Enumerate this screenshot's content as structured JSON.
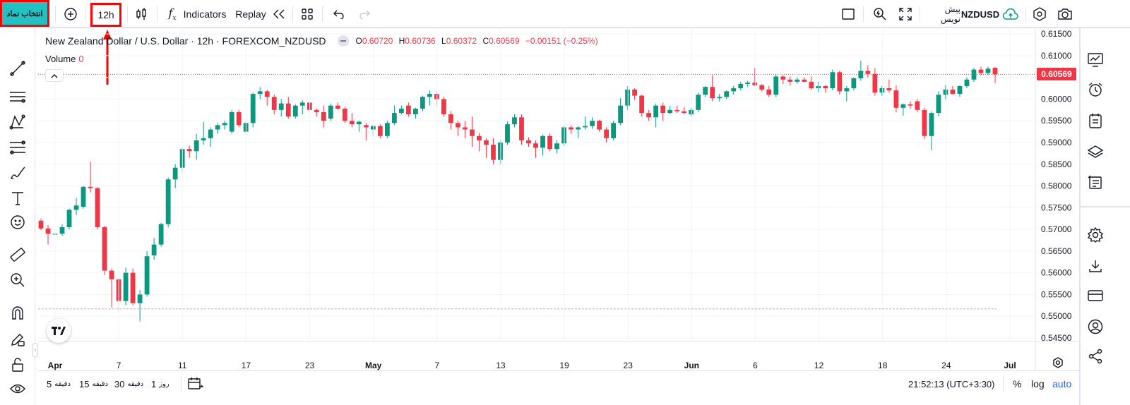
{
  "topbar": {
    "symbol_button": "انتخاب نماد",
    "timeframe": "12h",
    "indicators_label": "Indicators",
    "replay_label": "Replay",
    "symbol_name": "NZDUSD",
    "publish_label": "پیش نویس"
  },
  "legend": {
    "title": "New Zealand Dollar / U.S. Dollar · 12h · FOREXCOM_NZDUSD",
    "open_key": "O",
    "open": "0.60720",
    "high_key": "H",
    "high": "0.60736",
    "low_key": "L",
    "low": "0.60372",
    "close_key": "C",
    "close": "0.60569",
    "change": "−0.00151 (−0.25%)",
    "volume_label": "Volume",
    "volume_value": "0"
  },
  "price_axis": {
    "ticks": [
      "0.61500",
      "0.61000",
      "0.60500",
      "0.60000",
      "0.59500",
      "0.59000",
      "0.58500",
      "0.58000",
      "0.57500",
      "0.57000",
      "0.56500",
      "0.56000",
      "0.55500",
      "0.55000",
      "0.54500"
    ],
    "last_price": "0.60569",
    "last_price_color": "#f23645"
  },
  "time_axis": {
    "labels": [
      "Apr",
      "7",
      "11",
      "17",
      "23",
      "May",
      "7",
      "13",
      "19",
      "23",
      "Jun",
      "6",
      "12",
      "18",
      "24",
      "Jul"
    ]
  },
  "colors": {
    "up": "#089981",
    "down": "#f23645",
    "annotation": "#ff0000",
    "symbol_button_bg": "#22c1c3"
  },
  "bottombar": {
    "ranges": [
      {
        "num": "5",
        "unit": "دقیقه"
      },
      {
        "num": "15",
        "unit": "دقیقه"
      },
      {
        "num": "30",
        "unit": "دقیقه"
      },
      {
        "num": "1",
        "unit": "روز"
      }
    ],
    "clock": "21:52:13 (UTC+3:30)",
    "percent_label": "%",
    "log_label": "log",
    "auto_label": "auto"
  },
  "chart_data": {
    "type": "candlestick",
    "symbol": "FOREXCOM_NZDUSD",
    "interval": "12h",
    "ylim": [
      0.5445,
      0.616
    ],
    "candles": [
      {
        "o": 0.572,
        "h": 0.5725,
        "l": 0.5698,
        "c": 0.5702
      },
      {
        "o": 0.5702,
        "h": 0.571,
        "l": 0.5665,
        "c": 0.569
      },
      {
        "o": 0.5688,
        "h": 0.5702,
        "l": 0.568,
        "c": 0.569
      },
      {
        "o": 0.569,
        "h": 0.5712,
        "l": 0.5685,
        "c": 0.5705
      },
      {
        "o": 0.5705,
        "h": 0.5748,
        "l": 0.57,
        "c": 0.5745
      },
      {
        "o": 0.5745,
        "h": 0.5772,
        "l": 0.5733,
        "c": 0.5755
      },
      {
        "o": 0.5752,
        "h": 0.58,
        "l": 0.5748,
        "c": 0.5798
      },
      {
        "o": 0.5798,
        "h": 0.5856,
        "l": 0.5785,
        "c": 0.5795
      },
      {
        "o": 0.5795,
        "h": 0.5798,
        "l": 0.57,
        "c": 0.5705
      },
      {
        "o": 0.5705,
        "h": 0.5708,
        "l": 0.5595,
        "c": 0.5605
      },
      {
        "o": 0.5605,
        "h": 0.561,
        "l": 0.552,
        "c": 0.5585
      },
      {
        "o": 0.5585,
        "h": 0.559,
        "l": 0.551,
        "c": 0.5535
      },
      {
        "o": 0.5535,
        "h": 0.5612,
        "l": 0.5525,
        "c": 0.56
      },
      {
        "o": 0.56,
        "h": 0.561,
        "l": 0.5525,
        "c": 0.553
      },
      {
        "o": 0.553,
        "h": 0.556,
        "l": 0.5488,
        "c": 0.555
      },
      {
        "o": 0.555,
        "h": 0.565,
        "l": 0.5545,
        "c": 0.5638
      },
      {
        "o": 0.564,
        "h": 0.568,
        "l": 0.563,
        "c": 0.5665
      },
      {
        "o": 0.5665,
        "h": 0.5715,
        "l": 0.566,
        "c": 0.5712
      },
      {
        "o": 0.5712,
        "h": 0.582,
        "l": 0.5705,
        "c": 0.5815
      },
      {
        "o": 0.5815,
        "h": 0.585,
        "l": 0.5795,
        "c": 0.5842
      },
      {
        "o": 0.5842,
        "h": 0.589,
        "l": 0.583,
        "c": 0.5885
      },
      {
        "o": 0.5885,
        "h": 0.5893,
        "l": 0.5865,
        "c": 0.588
      },
      {
        "o": 0.588,
        "h": 0.592,
        "l": 0.586,
        "c": 0.5905
      },
      {
        "o": 0.5905,
        "h": 0.5948,
        "l": 0.5895,
        "c": 0.591
      },
      {
        "o": 0.591,
        "h": 0.5935,
        "l": 0.589,
        "c": 0.593
      },
      {
        "o": 0.593,
        "h": 0.5945,
        "l": 0.592,
        "c": 0.594
      },
      {
        "o": 0.594,
        "h": 0.595,
        "l": 0.593,
        "c": 0.5945
      },
      {
        "o": 0.5925,
        "h": 0.5975,
        "l": 0.592,
        "c": 0.597
      },
      {
        "o": 0.597,
        "h": 0.5975,
        "l": 0.5935,
        "c": 0.594
      },
      {
        "o": 0.5925,
        "h": 0.595,
        "l": 0.592,
        "c": 0.5945
      },
      {
        "o": 0.5945,
        "h": 0.6015,
        "l": 0.5935,
        "c": 0.6012
      },
      {
        "o": 0.6012,
        "h": 0.6028,
        "l": 0.6,
        "c": 0.6018
      },
      {
        "o": 0.6018,
        "h": 0.6022,
        "l": 0.5985,
        "c": 0.6005
      },
      {
        "o": 0.6005,
        "h": 0.601,
        "l": 0.5965,
        "c": 0.5975
      },
      {
        "o": 0.5975,
        "h": 0.6,
        "l": 0.596,
        "c": 0.599
      },
      {
        "o": 0.599,
        "h": 0.6005,
        "l": 0.5955,
        "c": 0.596
      },
      {
        "o": 0.596,
        "h": 0.5988,
        "l": 0.5955,
        "c": 0.5985
      },
      {
        "o": 0.5985,
        "h": 0.5997,
        "l": 0.5965,
        "c": 0.5992
      },
      {
        "o": 0.5992,
        "h": 0.5995,
        "l": 0.597,
        "c": 0.5975
      },
      {
        "o": 0.5975,
        "h": 0.5978,
        "l": 0.596,
        "c": 0.597
      },
      {
        "o": 0.597,
        "h": 0.5985,
        "l": 0.5935,
        "c": 0.595
      },
      {
        "o": 0.5955,
        "h": 0.599,
        "l": 0.595,
        "c": 0.5985
      },
      {
        "o": 0.5985,
        "h": 0.5992,
        "l": 0.5975,
        "c": 0.5978
      },
      {
        "o": 0.5978,
        "h": 0.5982,
        "l": 0.5945,
        "c": 0.595
      },
      {
        "o": 0.595,
        "h": 0.5968,
        "l": 0.5935,
        "c": 0.5942
      },
      {
        "o": 0.5942,
        "h": 0.595,
        "l": 0.5925,
        "c": 0.5948
      },
      {
        "o": 0.594,
        "h": 0.5945,
        "l": 0.5905,
        "c": 0.5935
      },
      {
        "o": 0.593,
        "h": 0.594,
        "l": 0.5915,
        "c": 0.5938
      },
      {
        "o": 0.5938,
        "h": 0.5942,
        "l": 0.591,
        "c": 0.5915
      },
      {
        "o": 0.5915,
        "h": 0.595,
        "l": 0.591,
        "c": 0.5945
      },
      {
        "o": 0.5945,
        "h": 0.5985,
        "l": 0.594,
        "c": 0.5968
      },
      {
        "o": 0.5968,
        "h": 0.5985,
        "l": 0.5965,
        "c": 0.5978
      },
      {
        "o": 0.5985,
        "h": 0.5992,
        "l": 0.596,
        "c": 0.5965
      },
      {
        "o": 0.5965,
        "h": 0.598,
        "l": 0.5955,
        "c": 0.5978
      },
      {
        "o": 0.5978,
        "h": 0.6008,
        "l": 0.5972,
        "c": 0.6005
      },
      {
        "o": 0.6005,
        "h": 0.602,
        "l": 0.5985,
        "c": 0.6012
      },
      {
        "o": 0.6012,
        "h": 0.6018,
        "l": 0.5985,
        "c": 0.6
      },
      {
        "o": 0.6,
        "h": 0.6005,
        "l": 0.596,
        "c": 0.5965
      },
      {
        "o": 0.5965,
        "h": 0.5972,
        "l": 0.593,
        "c": 0.5945
      },
      {
        "o": 0.5945,
        "h": 0.595,
        "l": 0.5915,
        "c": 0.5935
      },
      {
        "o": 0.5935,
        "h": 0.595,
        "l": 0.591,
        "c": 0.593
      },
      {
        "o": 0.593,
        "h": 0.596,
        "l": 0.589,
        "c": 0.5915
      },
      {
        "o": 0.5915,
        "h": 0.5922,
        "l": 0.588,
        "c": 0.5905
      },
      {
        "o": 0.5905,
        "h": 0.591,
        "l": 0.5865,
        "c": 0.5895
      },
      {
        "o": 0.5895,
        "h": 0.591,
        "l": 0.585,
        "c": 0.586
      },
      {
        "o": 0.586,
        "h": 0.5905,
        "l": 0.585,
        "c": 0.59
      },
      {
        "o": 0.59,
        "h": 0.5948,
        "l": 0.5895,
        "c": 0.5942
      },
      {
        "o": 0.5942,
        "h": 0.5965,
        "l": 0.5935,
        "c": 0.5958
      },
      {
        "o": 0.5958,
        "h": 0.5965,
        "l": 0.5895,
        "c": 0.5905
      },
      {
        "o": 0.5905,
        "h": 0.5912,
        "l": 0.589,
        "c": 0.5898
      },
      {
        "o": 0.5898,
        "h": 0.5905,
        "l": 0.5865,
        "c": 0.5888
      },
      {
        "o": 0.5888,
        "h": 0.5918,
        "l": 0.587,
        "c": 0.5915
      },
      {
        "o": 0.5915,
        "h": 0.592,
        "l": 0.588,
        "c": 0.5885
      },
      {
        "o": 0.5885,
        "h": 0.5905,
        "l": 0.5875,
        "c": 0.5898
      },
      {
        "o": 0.5898,
        "h": 0.5938,
        "l": 0.5892,
        "c": 0.5935
      },
      {
        "o": 0.5935,
        "h": 0.594,
        "l": 0.592,
        "c": 0.593
      },
      {
        "o": 0.593,
        "h": 0.5938,
        "l": 0.591,
        "c": 0.5935
      },
      {
        "o": 0.5935,
        "h": 0.596,
        "l": 0.593,
        "c": 0.5938
      },
      {
        "o": 0.5938,
        "h": 0.5958,
        "l": 0.5932,
        "c": 0.595
      },
      {
        "o": 0.595,
        "h": 0.5952,
        "l": 0.5925,
        "c": 0.593
      },
      {
        "o": 0.593,
        "h": 0.5935,
        "l": 0.59,
        "c": 0.591
      },
      {
        "o": 0.591,
        "h": 0.595,
        "l": 0.5905,
        "c": 0.5945
      },
      {
        "o": 0.5945,
        "h": 0.6002,
        "l": 0.594,
        "c": 0.5985
      },
      {
        "o": 0.5985,
        "h": 0.603,
        "l": 0.5975,
        "c": 0.6022
      },
      {
        "o": 0.6022,
        "h": 0.6025,
        "l": 0.5998,
        "c": 0.6008
      },
      {
        "o": 0.6008,
        "h": 0.601,
        "l": 0.596,
        "c": 0.5968
      },
      {
        "o": 0.5968,
        "h": 0.5975,
        "l": 0.595,
        "c": 0.5958
      },
      {
        "o": 0.5958,
        "h": 0.599,
        "l": 0.5935,
        "c": 0.5985
      },
      {
        "o": 0.5985,
        "h": 0.5992,
        "l": 0.595,
        "c": 0.5968
      },
      {
        "o": 0.5968,
        "h": 0.5985,
        "l": 0.5965,
        "c": 0.5975
      },
      {
        "o": 0.5975,
        "h": 0.5985,
        "l": 0.5968,
        "c": 0.5972
      },
      {
        "o": 0.5972,
        "h": 0.5982,
        "l": 0.5965,
        "c": 0.5968
      },
      {
        "o": 0.5965,
        "h": 0.598,
        "l": 0.596,
        "c": 0.5975
      },
      {
        "o": 0.5975,
        "h": 0.6015,
        "l": 0.597,
        "c": 0.601
      },
      {
        "o": 0.601,
        "h": 0.603,
        "l": 0.6005,
        "c": 0.6028
      },
      {
        "o": 0.6028,
        "h": 0.6055,
        "l": 0.5995,
        "c": 0.6002
      },
      {
        "o": 0.6002,
        "h": 0.6012,
        "l": 0.5995,
        "c": 0.6005
      },
      {
        "o": 0.6005,
        "h": 0.602,
        "l": 0.6,
        "c": 0.6018
      },
      {
        "o": 0.6018,
        "h": 0.603,
        "l": 0.601,
        "c": 0.6025
      },
      {
        "o": 0.6025,
        "h": 0.604,
        "l": 0.602,
        "c": 0.6035
      },
      {
        "o": 0.6035,
        "h": 0.6042,
        "l": 0.6028,
        "c": 0.6038
      },
      {
        "o": 0.6038,
        "h": 0.6072,
        "l": 0.603,
        "c": 0.6032
      },
      {
        "o": 0.6032,
        "h": 0.6035,
        "l": 0.6018,
        "c": 0.6022
      },
      {
        "o": 0.6022,
        "h": 0.603,
        "l": 0.6005,
        "c": 0.601
      },
      {
        "o": 0.601,
        "h": 0.6058,
        "l": 0.6005,
        "c": 0.6052
      },
      {
        "o": 0.6052,
        "h": 0.6055,
        "l": 0.6035,
        "c": 0.6045
      },
      {
        "o": 0.6045,
        "h": 0.6052,
        "l": 0.6032,
        "c": 0.604
      },
      {
        "o": 0.604,
        "h": 0.605,
        "l": 0.6035,
        "c": 0.6045
      },
      {
        "o": 0.6045,
        "h": 0.605,
        "l": 0.6038,
        "c": 0.604
      },
      {
        "o": 0.604,
        "h": 0.6052,
        "l": 0.6022,
        "c": 0.6025
      },
      {
        "o": 0.6025,
        "h": 0.604,
        "l": 0.6015,
        "c": 0.603
      },
      {
        "o": 0.603,
        "h": 0.6032,
        "l": 0.6015,
        "c": 0.6025
      },
      {
        "o": 0.6025,
        "h": 0.6068,
        "l": 0.602,
        "c": 0.6062
      },
      {
        "o": 0.6062,
        "h": 0.6065,
        "l": 0.601,
        "c": 0.6018
      },
      {
        "o": 0.6018,
        "h": 0.603,
        "l": 0.5995,
        "c": 0.6025
      },
      {
        "o": 0.6025,
        "h": 0.605,
        "l": 0.602,
        "c": 0.6048
      },
      {
        "o": 0.6048,
        "h": 0.6088,
        "l": 0.6042,
        "c": 0.6065
      },
      {
        "o": 0.6065,
        "h": 0.6078,
        "l": 0.605,
        "c": 0.6058
      },
      {
        "o": 0.6058,
        "h": 0.6072,
        "l": 0.6008,
        "c": 0.6015
      },
      {
        "o": 0.6015,
        "h": 0.603,
        "l": 0.6008,
        "c": 0.6025
      },
      {
        "o": 0.6025,
        "h": 0.6045,
        "l": 0.6015,
        "c": 0.602
      },
      {
        "o": 0.602,
        "h": 0.6032,
        "l": 0.597,
        "c": 0.598
      },
      {
        "o": 0.598,
        "h": 0.599,
        "l": 0.5962,
        "c": 0.5988
      },
      {
        "o": 0.5988,
        "h": 0.5995,
        "l": 0.5978,
        "c": 0.5985
      },
      {
        "o": 0.5995,
        "h": 0.6,
        "l": 0.597,
        "c": 0.5975
      },
      {
        "o": 0.5975,
        "h": 0.598,
        "l": 0.5908,
        "c": 0.5915
      },
      {
        "o": 0.5915,
        "h": 0.5972,
        "l": 0.5882,
        "c": 0.5968
      },
      {
        "o": 0.5968,
        "h": 0.6018,
        "l": 0.596,
        "c": 0.601
      },
      {
        "o": 0.601,
        "h": 0.6032,
        "l": 0.6,
        "c": 0.6022
      },
      {
        "o": 0.6022,
        "h": 0.603,
        "l": 0.601,
        "c": 0.6012
      },
      {
        "o": 0.6012,
        "h": 0.6032,
        "l": 0.6005,
        "c": 0.603
      },
      {
        "o": 0.603,
        "h": 0.605,
        "l": 0.6025,
        "c": 0.6045
      },
      {
        "o": 0.6045,
        "h": 0.6072,
        "l": 0.604,
        "c": 0.6068
      },
      {
        "o": 0.6068,
        "h": 0.6075,
        "l": 0.6055,
        "c": 0.606
      },
      {
        "o": 0.606,
        "h": 0.6075,
        "l": 0.6055,
        "c": 0.607
      },
      {
        "o": 0.6072,
        "h": 0.6074,
        "l": 0.6037,
        "c": 0.6057
      }
    ]
  }
}
